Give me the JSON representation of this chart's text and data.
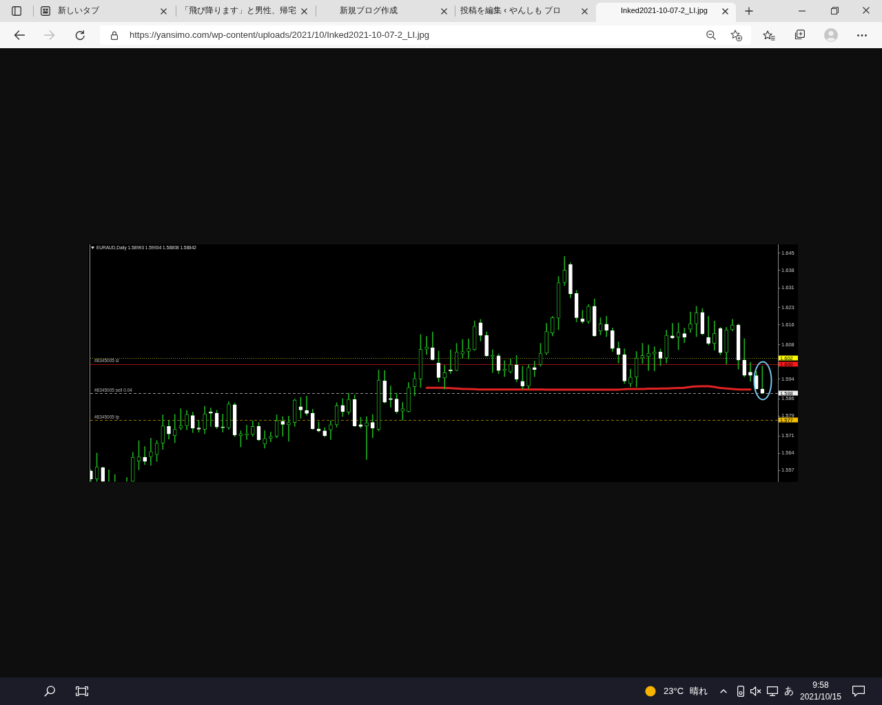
{
  "chart_data": {
    "type": "candlestick",
    "title": "EURAUD,Daily 1.58993 1.59934 1.58808 1.58842",
    "categories": [
      null,
      null,
      null,
      null,
      null,
      null,
      null,
      null,
      null,
      null,
      null,
      null,
      null,
      null,
      null,
      null,
      null,
      null,
      null,
      null,
      null,
      null,
      null,
      null,
      null,
      null,
      null,
      null,
      null,
      null,
      null,
      null,
      null,
      null,
      null,
      null,
      null,
      null,
      null,
      null,
      null,
      null,
      null,
      null,
      null,
      null,
      null,
      null,
      null,
      null,
      null,
      null,
      null,
      null,
      null,
      null,
      null,
      null,
      null,
      null,
      null,
      null,
      null,
      null,
      null,
      null,
      null,
      null,
      null,
      null,
      null,
      null,
      null,
      null,
      null,
      null,
      null,
      null,
      null,
      null,
      null,
      null,
      null,
      null,
      null,
      null,
      null,
      null,
      null,
      null,
      null,
      null,
      null,
      null,
      null,
      null,
      null,
      null,
      null,
      null,
      null,
      null,
      null,
      null,
      null,
      null,
      null,
      null,
      null,
      null,
      null,
      null,
      null
    ],
    "ohlc": [
      [
        1.5567,
        1.5572,
        1.5525,
        1.5535
      ],
      [
        1.5535,
        1.564,
        1.5525,
        1.5584
      ],
      [
        1.5581,
        1.5584,
        1.5525,
        1.5525
      ],
      [
        1.5525,
        1.5572,
        1.5525,
        1.5525
      ],
      [
        1.5525,
        1.5553,
        1.5525,
        1.5525
      ],
      null,
      [
        1.5525,
        1.5541,
        1.5525,
        1.5525
      ],
      [
        1.5525,
        1.5643,
        1.5525,
        1.5623
      ],
      [
        1.5608,
        1.569,
        1.5572,
        1.5625
      ],
      [
        1.5623,
        1.5667,
        1.5593,
        1.5606
      ],
      [
        1.5625,
        1.57,
        1.559,
        1.5646
      ],
      [
        1.5634,
        1.5691,
        1.5606,
        1.568
      ],
      [
        1.568,
        1.5795,
        1.5655,
        1.575
      ],
      [
        1.5748,
        1.5771,
        1.5697,
        1.5718
      ],
      [
        1.5711,
        1.5797,
        1.5682,
        1.5736
      ],
      [
        1.5742,
        1.582,
        1.5734,
        1.5752
      ],
      [
        1.5751,
        1.5813,
        1.5734,
        1.5797
      ],
      [
        1.5792,
        1.5806,
        1.5723,
        1.5741
      ],
      [
        1.5742,
        1.5771,
        1.5725,
        1.5737
      ],
      [
        1.5736,
        1.583,
        1.5718,
        1.5799
      ],
      [
        1.5807,
        1.5823,
        1.5748,
        1.5802
      ],
      [
        1.5802,
        1.5814,
        1.5739,
        1.5746
      ],
      [
        1.5746,
        1.5798,
        1.5725,
        1.5743
      ],
      [
        1.5742,
        1.5849,
        1.5736,
        1.5839
      ],
      [
        1.5836,
        1.5843,
        1.5706,
        1.5713
      ],
      [
        1.571,
        1.573,
        1.5665,
        1.5718
      ],
      [
        1.5714,
        1.5753,
        1.5695,
        1.5718
      ],
      [
        1.5716,
        1.5771,
        1.5708,
        1.5748
      ],
      [
        1.5748,
        1.5764,
        1.569,
        1.5694
      ],
      [
        1.5677,
        1.5731,
        1.566,
        1.5699
      ],
      [
        1.5699,
        1.5725,
        1.5686,
        1.5708
      ],
      [
        1.5708,
        1.5795,
        1.5702,
        1.5771
      ],
      [
        1.5769,
        1.5788,
        1.5708,
        1.5756
      ],
      [
        1.5755,
        1.579,
        1.5688,
        1.5764
      ],
      [
        1.5764,
        1.5859,
        1.5748,
        1.5855
      ],
      [
        1.5828,
        1.5866,
        1.5781,
        1.5815
      ],
      [
        1.5813,
        1.5871,
        1.5793,
        1.5801
      ],
      [
        1.5801,
        1.5818,
        1.5736,
        1.5738
      ],
      [
        1.5738,
        1.5767,
        1.5725,
        1.573
      ],
      [
        1.573,
        1.5743,
        1.5706,
        1.571
      ],
      [
        1.5734,
        1.5771,
        1.5695,
        1.5755
      ],
      [
        1.5755,
        1.5844,
        1.5745,
        1.5832
      ],
      [
        1.5833,
        1.5861,
        1.5788,
        1.5808
      ],
      [
        1.5806,
        1.5883,
        1.5797,
        1.5858
      ],
      [
        1.5857,
        1.5876,
        1.5748,
        1.575
      ],
      [
        1.5755,
        1.5785,
        1.5741,
        1.5748
      ],
      [
        1.575,
        1.5788,
        1.5614,
        1.5763
      ],
      [
        1.5764,
        1.5796,
        1.5702,
        1.5741
      ],
      [
        1.5736,
        1.5977,
        1.573,
        1.5936
      ],
      [
        1.5933,
        1.5975,
        1.5843,
        1.5846
      ],
      [
        1.5861,
        1.5912,
        1.5826,
        1.5857
      ],
      [
        1.5859,
        1.5883,
        1.5801,
        1.5808
      ],
      [
        1.581,
        1.5846,
        1.5773,
        1.582
      ],
      [
        1.5808,
        1.5926,
        1.5806,
        1.5906
      ],
      [
        1.5909,
        1.5968,
        1.5872,
        1.5942
      ],
      [
        1.594,
        1.6121,
        1.5906,
        1.6061
      ],
      [
        1.6061,
        1.6113,
        1.604,
        1.607
      ],
      [
        1.6067,
        1.6131,
        1.6017,
        1.6019
      ],
      [
        1.6005,
        1.6054,
        1.5929,
        1.5946
      ],
      [
        1.5945,
        1.5996,
        1.5899,
        1.5966
      ],
      [
        1.5977,
        1.6059,
        1.5963,
        1.5973
      ],
      [
        1.5975,
        1.6085,
        1.5973,
        1.605
      ],
      [
        1.6042,
        1.6101,
        1.6025,
        1.6052
      ],
      [
        1.6052,
        1.6103,
        1.6022,
        1.6064
      ],
      [
        1.6059,
        1.6176,
        1.6056,
        1.6154
      ],
      [
        1.6168,
        1.6182,
        1.6094,
        1.6117
      ],
      [
        1.6117,
        1.6131,
        1.6031,
        1.6035
      ],
      [
        1.6031,
        1.6059,
        1.5966,
        1.6036
      ],
      [
        1.6034,
        1.6042,
        1.5962,
        1.5975
      ],
      [
        1.5975,
        1.6015,
        1.595,
        1.598
      ],
      [
        1.5969,
        1.6022,
        1.5964,
        1.5999
      ],
      [
        1.5997,
        1.6036,
        1.5929,
        1.594
      ],
      [
        1.5931,
        1.5992,
        1.5899,
        1.5912
      ],
      [
        1.5911,
        1.5999,
        1.5901,
        1.5987
      ],
      [
        1.5987,
        1.6013,
        1.595,
        1.5979
      ],
      [
        1.5999,
        1.6085,
        1.5992,
        1.6045
      ],
      [
        1.6045,
        1.6166,
        1.6039,
        1.6133
      ],
      [
        1.6127,
        1.6194,
        1.6115,
        1.6189
      ],
      [
        1.6187,
        1.6356,
        1.614,
        1.6331
      ],
      [
        1.6331,
        1.6437,
        1.6319,
        1.6382
      ],
      [
        1.6404,
        1.6412,
        1.627,
        1.6286
      ],
      [
        1.6287,
        1.63,
        1.6172,
        1.6189
      ],
      [
        1.6184,
        1.6219,
        1.6166,
        1.6173
      ],
      [
        1.6173,
        1.6242,
        1.6166,
        1.6235
      ],
      [
        1.6235,
        1.6265,
        1.6113,
        1.6115
      ],
      [
        1.6135,
        1.6189,
        1.6119,
        1.6164
      ],
      [
        1.6163,
        1.6195,
        1.6112,
        1.6138
      ],
      [
        1.6136,
        1.6147,
        1.6052,
        1.6064
      ],
      [
        1.6065,
        1.6091,
        1.6005,
        1.604
      ],
      [
        1.6039,
        1.6063,
        1.5922,
        1.5932
      ],
      [
        1.5922,
        1.598,
        1.5909,
        1.5948
      ],
      [
        1.5948,
        1.6052,
        1.5908,
        1.6025
      ],
      [
        1.6025,
        1.6085,
        1.6003,
        1.6036
      ],
      [
        1.6031,
        1.6078,
        1.5975,
        1.6045
      ],
      [
        1.6042,
        1.6071,
        1.5973,
        1.605
      ],
      [
        1.605,
        1.6062,
        1.5994,
        1.6024
      ],
      [
        1.6025,
        1.6138,
        1.6005,
        1.6117
      ],
      [
        1.6115,
        1.6166,
        1.6104,
        1.6107
      ],
      [
        1.611,
        1.6168,
        1.6059,
        1.613
      ],
      [
        1.6124,
        1.6147,
        1.6087,
        1.611
      ],
      [
        1.6142,
        1.6212,
        1.6129,
        1.6164
      ],
      [
        1.6164,
        1.6235,
        1.6112,
        1.6209
      ],
      [
        1.621,
        1.6226,
        1.6119,
        1.6124
      ],
      [
        1.6109,
        1.6195,
        1.6079,
        1.6085
      ],
      [
        1.6085,
        1.6175,
        1.6057,
        1.6125
      ],
      [
        1.6145,
        1.615,
        1.6038,
        1.6047
      ],
      [
        1.6047,
        1.615,
        1.6001,
        1.614
      ],
      [
        1.614,
        1.6182,
        1.6135,
        1.6159
      ],
      [
        1.6159,
        1.6164,
        1.598,
        1.6017
      ],
      [
        1.6017,
        1.6104,
        1.5949,
        1.5955
      ],
      [
        1.5968,
        1.6008,
        1.5931,
        1.5955
      ],
      [
        1.5954,
        1.5971,
        1.5899,
        1.5901
      ],
      [
        1.58993,
        1.59934,
        1.58808,
        1.58842
      ]
    ],
    "color": "#1fae1f",
    "colors": [
      "#ffffff",
      "#1fae1f",
      "#ffffff",
      "#1fae1f",
      "#1fae1f",
      null,
      "#1fae1f",
      "#1fae1f",
      "#1fae1f",
      "#ffffff",
      "#1fae1f",
      "#1fae1f",
      "#1fae1f",
      "#ffffff",
      "#1fae1f",
      "#1fae1f",
      "#1fae1f",
      "#ffffff",
      "#ffffff",
      "#1fae1f",
      "#ffffff",
      "#ffffff",
      "#ffffff",
      "#1fae1f",
      "#ffffff",
      "#1fae1f",
      "#1fae1f",
      "#1fae1f",
      "#ffffff",
      "#1fae1f",
      "#1fae1f",
      "#1fae1f",
      "#ffffff",
      "#1fae1f",
      "#1fae1f",
      "#ffffff",
      "#ffffff",
      "#ffffff",
      "#ffffff",
      "#ffffff",
      "#1fae1f",
      "#1fae1f",
      "#ffffff",
      "#1fae1f",
      "#ffffff",
      "#ffffff",
      "#1fae1f",
      "#ffffff",
      "#1fae1f",
      "#ffffff",
      "#ffffff",
      "#ffffff",
      "#1fae1f",
      "#1fae1f",
      "#1fae1f",
      "#1fae1f",
      "#1fae1f",
      "#ffffff",
      "#ffffff",
      "#1fae1f",
      "#ffffff",
      "#1fae1f",
      "#1fae1f",
      "#1fae1f",
      "#1fae1f",
      "#ffffff",
      "#ffffff",
      "#1fae1f",
      "#ffffff",
      "#1fae1f",
      "#1fae1f",
      "#ffffff",
      "#ffffff",
      "#1fae1f",
      "#ffffff",
      "#1fae1f",
      "#1fae1f",
      "#1fae1f",
      "#1fae1f",
      "#1fae1f",
      "#ffffff",
      "#ffffff",
      "#ffffff",
      "#1fae1f",
      "#ffffff",
      "#1fae1f",
      "#ffffff",
      "#ffffff",
      "#ffffff",
      "#ffffff",
      "#1fae1f",
      "#1fae1f",
      "#1fae1f",
      "#1fae1f",
      "#1fae1f",
      "#ffffff",
      "#1fae1f",
      "#ffffff",
      "#1fae1f",
      "#ffffff",
      "#1fae1f",
      "#1fae1f",
      "#ffffff",
      "#ffffff",
      "#1fae1f",
      "#ffffff",
      "#1fae1f",
      "#1fae1f",
      "#ffffff",
      "#ffffff",
      "#ffffff",
      "#ffffff",
      "#ffffff"
    ],
    "series": [
      {
        "type": "line",
        "color": "#e42323",
        "values": [
          null,
          null,
          null,
          null,
          null,
          null,
          null,
          null,
          null,
          null,
          null,
          null,
          null,
          null,
          null,
          null,
          null,
          null,
          null,
          null,
          null,
          null,
          null,
          null,
          null,
          null,
          null,
          null,
          null,
          null,
          null,
          null,
          null,
          null,
          null,
          null,
          null,
          null,
          null,
          null,
          null,
          null,
          null,
          null,
          null,
          null,
          null,
          null,
          null,
          null,
          null,
          null,
          null,
          null,
          null,
          null,
          1.5905,
          1.5905,
          1.5905,
          1.5904,
          1.5903,
          1.5902,
          1.59,
          1.59,
          1.5899,
          1.5898,
          1.5898,
          1.5898,
          1.5898,
          1.5898,
          1.5898,
          1.5898,
          1.5898,
          1.5898,
          1.5898,
          1.5898,
          1.5897,
          1.5897,
          1.5897,
          1.5897,
          1.5897,
          1.5897,
          1.5897,
          1.5897,
          1.5897,
          1.5897,
          1.5897,
          1.5897,
          1.5897,
          1.5899,
          1.59,
          1.59,
          1.59,
          1.5901,
          1.5901,
          1.5902,
          1.5902,
          1.5903,
          1.5904,
          1.5905,
          1.5908,
          1.591,
          1.5911,
          1.5911,
          1.5908,
          1.5904,
          1.5902,
          1.59,
          1.5898,
          1.5898,
          1.5898,
          null,
          null
        ]
      }
    ],
    "ylim": [
      1.5523,
      1.6486
    ],
    "yticks": [
      1.557,
      1.564,
      1.571,
      1.579,
      1.586,
      1.594,
      1.608,
      1.616,
      1.623,
      1.631,
      1.638,
      1.645
    ],
    "tick_labels": "y",
    "ref_lines": [
      {
        "axis": "y",
        "value": 1.6025,
        "label": "1.602",
        "color": "#ffff00",
        "line_style": "dotted"
      },
      {
        "axis": "y",
        "value": 1.6001,
        "label": "1.600",
        "color": "#ff1a1a",
        "line_style": "solid"
      },
      {
        "axis": "y",
        "value": 1.5883,
        "label": "1.588",
        "color": "#f0f0f0",
        "line_style": "dashed"
      },
      {
        "axis": "y",
        "value": 1.5773,
        "label": "1.577",
        "color": "#f0c000",
        "line_style": "dashed"
      }
    ],
    "annotations": [
      {
        "text": "#8345005 sl",
        "y": 1.6001
      },
      {
        "text": "#8345005 sell 0.04",
        "y": 1.5883
      },
      {
        "text": "#8345005 tp",
        "y": 1.5773
      },
      "新しいタブ",
      "「飛び降ります」と男性、帰宅",
      "新規ブログ作成",
      "投稿を編集 ‹ やんしも ブロ",
      "Inked2021-10-07-2_LI.jpg",
      "https://yansimo.com/wp-content/uploads/2021/10/Inked2021-10-07-2_LI.jpg",
      "23°C",
      "晴れ",
      "あ",
      "9:58",
      "2021/10/15"
    ]
  }
}
